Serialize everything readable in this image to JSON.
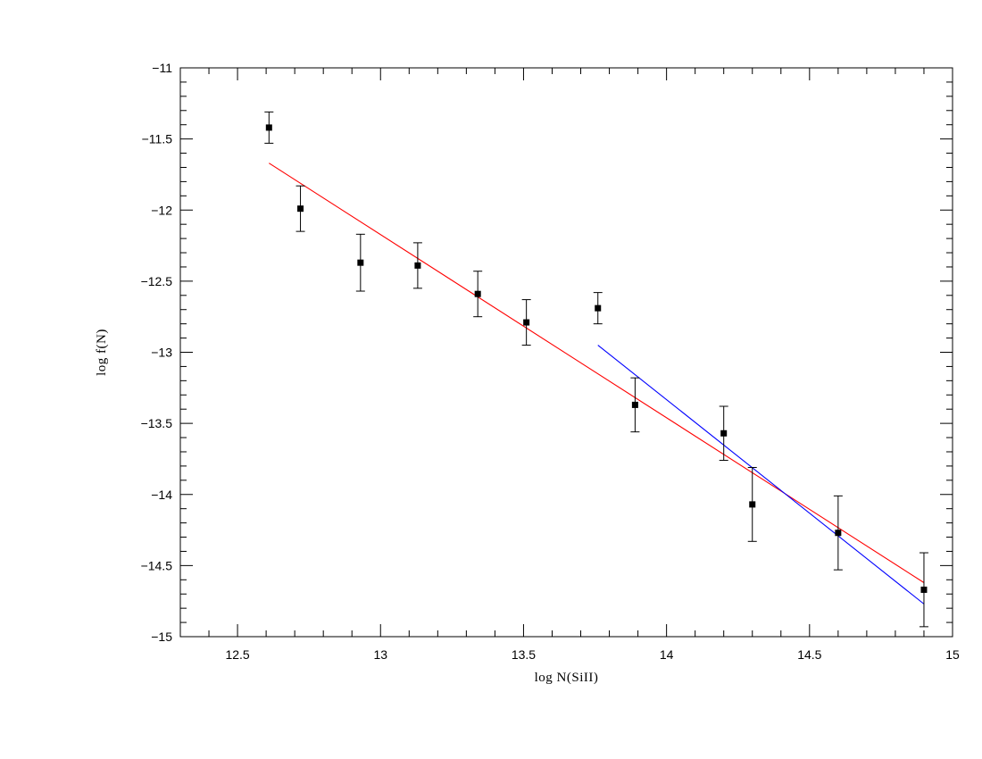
{
  "chart_data": {
    "type": "scatter",
    "title": "",
    "xlabel": "log  N(SiII)",
    "ylabel": "log  f(N)",
    "xlim": [
      12.3,
      15
    ],
    "ylim": [
      -15,
      -11
    ],
    "grid": false,
    "x_ticks": [
      12.5,
      13,
      13.5,
      14,
      14.5,
      15
    ],
    "x_tick_labels": [
      "12.5",
      "13",
      "13.5",
      "14",
      "14.5",
      "15"
    ],
    "y_ticks": [
      -11,
      -11.5,
      -12,
      -12.5,
      -13,
      -13.5,
      -14,
      -14.5,
      -15
    ],
    "y_tick_labels": [
      "−11",
      "−11.5",
      "−12",
      "−12.5",
      "−13",
      "−13.5",
      "−14",
      "−14.5",
      "−15"
    ],
    "points": [
      {
        "x": 12.61,
        "y": -11.42,
        "err_low": 0.11,
        "err_high": 0.11
      },
      {
        "x": 12.72,
        "y": -11.99,
        "err_low": 0.16,
        "err_high": 0.16
      },
      {
        "x": 12.93,
        "y": -12.37,
        "err_low": 0.2,
        "err_high": 0.2
      },
      {
        "x": 13.13,
        "y": -12.39,
        "err_low": 0.16,
        "err_high": 0.16
      },
      {
        "x": 13.34,
        "y": -12.59,
        "err_low": 0.16,
        "err_high": 0.16
      },
      {
        "x": 13.51,
        "y": -12.79,
        "err_low": 0.16,
        "err_high": 0.16
      },
      {
        "x": 13.76,
        "y": -12.69,
        "err_low": 0.11,
        "err_high": 0.11
      },
      {
        "x": 13.89,
        "y": -13.37,
        "err_low": 0.19,
        "err_high": 0.19
      },
      {
        "x": 14.2,
        "y": -13.57,
        "err_low": 0.19,
        "err_high": 0.19
      },
      {
        "x": 14.3,
        "y": -14.07,
        "err_low": 0.26,
        "err_high": 0.26
      },
      {
        "x": 14.6,
        "y": -14.27,
        "err_low": 0.26,
        "err_high": 0.26
      },
      {
        "x": 14.9,
        "y": -14.67,
        "err_low": 0.26,
        "err_high": 0.26
      }
    ],
    "fit_lines": [
      {
        "color": "#ff0000",
        "x": [
          12.61,
          14.9
        ],
        "y": [
          -11.67,
          -14.62
        ]
      },
      {
        "color": "#0000ff",
        "x": [
          13.76,
          14.9
        ],
        "y": [
          -12.95,
          -14.77
        ]
      }
    ],
    "colors": {
      "markers": "#000000",
      "axes": "#000000"
    }
  }
}
